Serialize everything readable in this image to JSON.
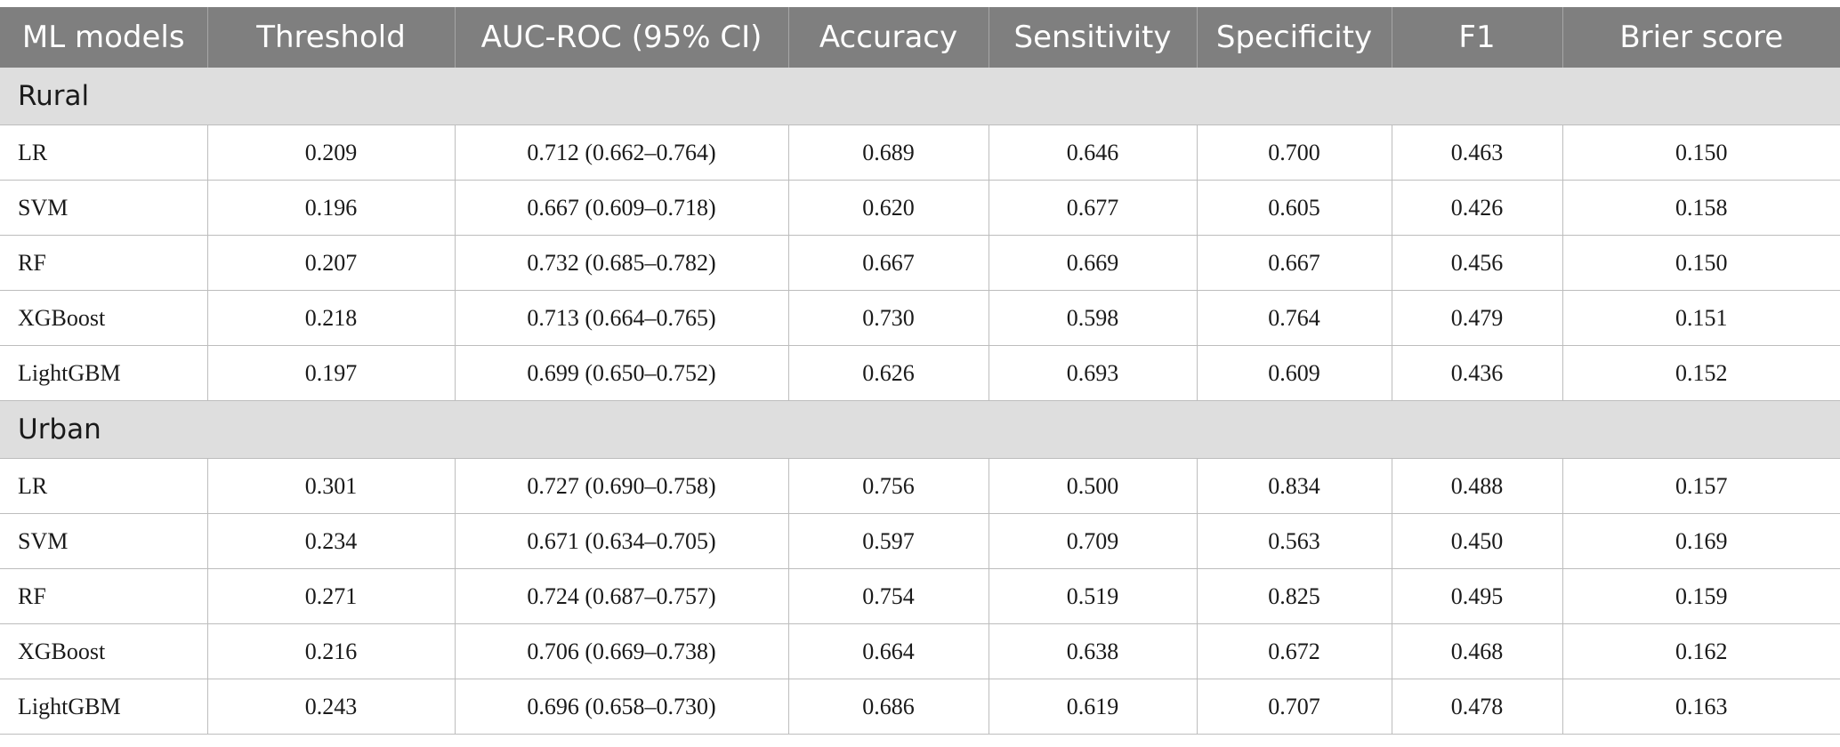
{
  "columns": [
    "ML models",
    "Threshold",
    "AUC-ROC (95% CI)",
    "Accuracy",
    "Sensitivity",
    "Specificity",
    "F1",
    "Brier score"
  ],
  "groups": [
    {
      "name": "Rural",
      "rows": [
        [
          "LR",
          "0.209",
          "0.712 (0.662–0.764)",
          "0.689",
          "0.646",
          "0.700",
          "0.463",
          "0.150"
        ],
        [
          "SVM",
          "0.196",
          "0.667 (0.609–0.718)",
          "0.620",
          "0.677",
          "0.605",
          "0.426",
          "0.158"
        ],
        [
          "RF",
          "0.207",
          "0.732 (0.685–0.782)",
          "0.667",
          "0.669",
          "0.667",
          "0.456",
          "0.150"
        ],
        [
          "XGBoost",
          "0.218",
          "0.713 (0.664–0.765)",
          "0.730",
          "0.598",
          "0.764",
          "0.479",
          "0.151"
        ],
        [
          "LightGBM",
          "0.197",
          "0.699 (0.650–0.752)",
          "0.626",
          "0.693",
          "0.609",
          "0.436",
          "0.152"
        ]
      ]
    },
    {
      "name": "Urban",
      "rows": [
        [
          "LR",
          "0.301",
          "0.727 (0.690–0.758)",
          "0.756",
          "0.500",
          "0.834",
          "0.488",
          "0.157"
        ],
        [
          "SVM",
          "0.234",
          "0.671 (0.634–0.705)",
          "0.597",
          "0.709",
          "0.563",
          "0.450",
          "0.169"
        ],
        [
          "RF",
          "0.271",
          "0.724 (0.687–0.757)",
          "0.754",
          "0.519",
          "0.825",
          "0.495",
          "0.159"
        ],
        [
          "XGBoost",
          "0.216",
          "0.706 (0.669–0.738)",
          "0.664",
          "0.638",
          "0.672",
          "0.468",
          "0.162"
        ],
        [
          "LightGBM",
          "0.243",
          "0.696 (0.658–0.730)",
          "0.686",
          "0.619",
          "0.707",
          "0.478",
          "0.163"
        ]
      ]
    }
  ]
}
